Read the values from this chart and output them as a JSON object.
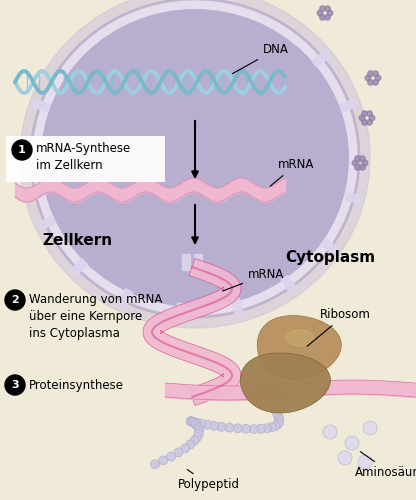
{
  "bg_color": "#f0ead8",
  "nucleus_fill": "#b8aed0",
  "nucleus_outer_fill": "#ccc0dc",
  "nucleus_border_color": "#e8e0f0",
  "nucleus_border_dark": "#a090b8",
  "cytoplasm_label": "Cytoplasm",
  "zellkern_label": "Zellkern",
  "dna_label": "DNA",
  "mrna_label_top": "mRNA",
  "mrna_label_mid": "mRNA",
  "ribosom_label": "Ribosom",
  "polypeptid_label": "Polypeptid",
  "aminosaure_label": "Aminosäure",
  "step1_circle": "1",
  "step1_text": "mRNA-Synthese\nim Zellkern",
  "step2_circle": "2",
  "step2_text": "Wanderung von mRNA\nüber eine Kernpore\nins Cytoplasma",
  "step3_circle": "3",
  "step3_text": "Proteinsynthese",
  "dna_color1": "#9ecfdf",
  "dna_color2": "#7ab8cc",
  "mrna_pink_dark": "#d85090",
  "mrna_pink_light": "#f0b8d0",
  "ribosom_color": "#a08050",
  "ribosom_color2": "#b89060",
  "polypeptid_color": "#ccc8e0",
  "amino_color": "#dddaee",
  "pore_color": "#dcd4ec",
  "pore_color2": "#c8c0d8",
  "white_box_color": "#ffffff",
  "dot_color": "#9080a8"
}
